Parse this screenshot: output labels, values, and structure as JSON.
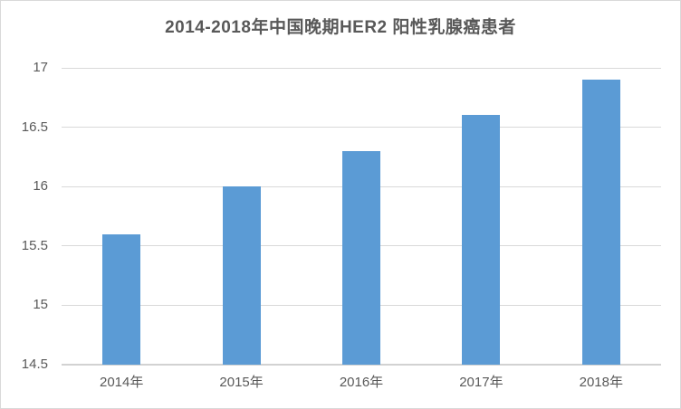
{
  "colors": {
    "bar": "#5b9bd5",
    "gridline": "#d9d9d9",
    "axis_line": "#d2d2d2",
    "text": "#595959",
    "frame_border": "#d9d9d9",
    "background": "#ffffff"
  },
  "chart_data": {
    "type": "bar",
    "title": "2014-2018年中国晚期HER2 阳性乳腺癌患者",
    "categories": [
      "2014年",
      "2015年",
      "2016年",
      "2017年",
      "2018年"
    ],
    "values": [
      15.6,
      16,
      16.3,
      16.6,
      16.9
    ],
    "xlabel": "",
    "ylabel": "",
    "ylim": [
      14.5,
      17
    ],
    "yticks": [
      14.5,
      15,
      15.5,
      16,
      16.5,
      17
    ],
    "grid": true,
    "legend_position": "none"
  }
}
